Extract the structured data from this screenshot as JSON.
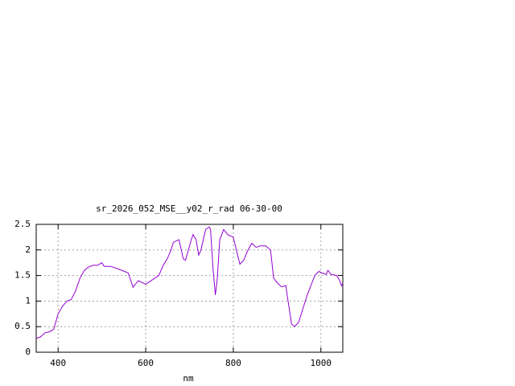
{
  "chart_data": {
    "type": "line",
    "title": "sr_2026_052_MSE__y02_r_rad 06-30-00",
    "x_label": "nm",
    "xlim": [
      350,
      1050
    ],
    "ylim": [
      0,
      2.5
    ],
    "xticks": [
      400,
      600,
      800,
      1000
    ],
    "yticks": [
      0,
      0.5,
      1,
      1.5,
      2,
      2.5
    ],
    "grid": true,
    "series": [
      {
        "color": "#9400d3",
        "x": [
          350,
          360,
          370,
          380,
          390,
          400,
          410,
          420,
          430,
          440,
          450,
          460,
          470,
          480,
          490,
          500,
          505,
          520,
          540,
          560,
          571,
          583,
          600,
          621,
          630,
          640,
          649,
          658,
          663,
          676,
          686,
          691,
          704,
          708,
          715,
          721,
          726,
          737,
          745,
          748,
          754,
          759,
          763,
          769,
          778,
          787,
          800,
          807,
          815,
          824,
          831,
          842,
          852,
          861,
          874,
          885,
          892,
          901,
          910,
          920,
          925,
          933,
          940,
          949,
          957,
          968,
          977,
          986,
          995,
          1003,
          1012,
          1016,
          1023,
          1036,
          1043,
          1047,
          1050
        ],
        "values": [
          0.27,
          0.3,
          0.38,
          0.4,
          0.45,
          0.75,
          0.9,
          1.0,
          1.03,
          1.2,
          1.45,
          1.6,
          1.67,
          1.7,
          1.7,
          1.75,
          1.68,
          1.68,
          1.62,
          1.55,
          1.27,
          1.4,
          1.33,
          1.45,
          1.5,
          1.7,
          1.82,
          2.0,
          2.15,
          2.2,
          1.82,
          1.8,
          2.2,
          2.3,
          2.2,
          1.9,
          2.0,
          2.4,
          2.45,
          2.4,
          1.6,
          1.12,
          1.4,
          2.2,
          2.4,
          2.3,
          2.25,
          2.0,
          1.72,
          1.8,
          1.95,
          2.13,
          2.05,
          2.08,
          2.08,
          2.0,
          1.45,
          1.35,
          1.28,
          1.3,
          1.0,
          0.55,
          0.5,
          0.58,
          0.8,
          1.1,
          1.3,
          1.5,
          1.58,
          1.55,
          1.52,
          1.6,
          1.52,
          1.5,
          1.4,
          1.3,
          1.35
        ]
      }
    ]
  }
}
